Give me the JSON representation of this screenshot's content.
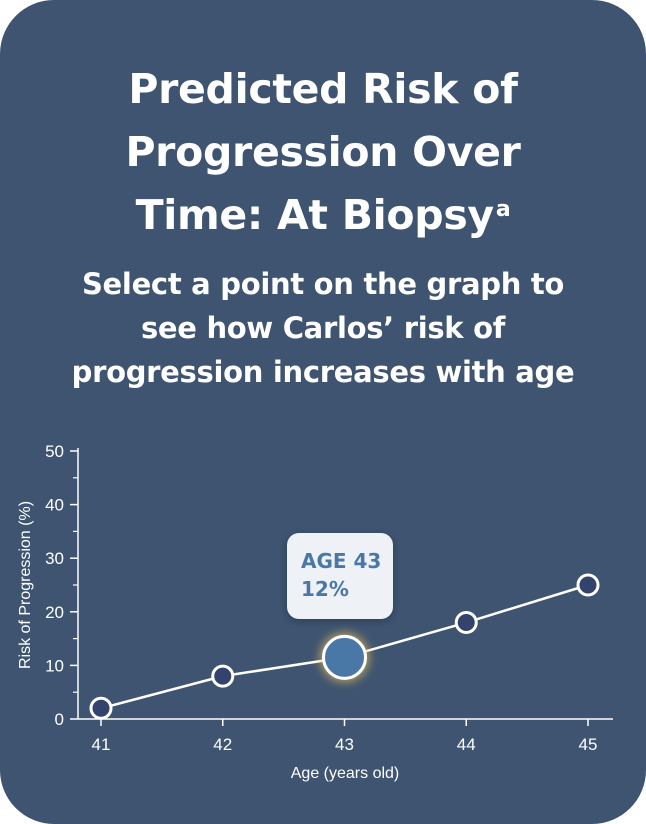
{
  "header": {
    "title_line1": "Predicted Risk of",
    "title_line2": "Progression Over",
    "title_line3": "Time: At Biopsy",
    "title_superscript": "a",
    "subtitle_line1": "Select a point on the graph to",
    "subtitle_line2": "see how Carlos’ risk of",
    "subtitle_line3": "progression increases with age"
  },
  "tooltip": {
    "age_label": "AGE 43",
    "risk_label": "12%"
  },
  "colors": {
    "card_background": "#3e5470",
    "point_fill": "#34436e",
    "selected_point_fill": "#4a78a6",
    "selected_glow": "#f2c45a",
    "tooltip_background": "#eef1f5",
    "tooltip_text": "#4a78a6"
  },
  "chart_data": {
    "type": "line",
    "x": [
      41,
      42,
      43,
      44,
      45
    ],
    "x_tick_labels": [
      "41",
      "42",
      "43",
      "44",
      "45"
    ],
    "values": [
      2,
      8,
      11.5,
      18,
      25
    ],
    "selected_index": 2,
    "xlabel": "Age (years old)",
    "ylabel": "Risk of Progression (%)",
    "ylim": [
      0,
      50
    ],
    "xlim": [
      41,
      45
    ],
    "y_ticks": [
      0,
      10,
      20,
      30,
      40,
      50
    ],
    "y_tick_labels": [
      "0",
      "10",
      "20",
      "30",
      "40",
      "50"
    ],
    "grid": false,
    "legend": "none"
  }
}
